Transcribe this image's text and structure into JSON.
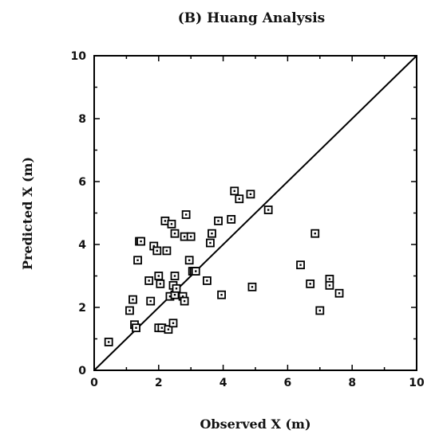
{
  "chart_data": {
    "type": "scatter",
    "title": "(B) Huang Analysis",
    "xlabel": "Observed X (m)",
    "ylabel": "Predicted X (m)",
    "xlim": [
      0,
      10
    ],
    "ylim": [
      0,
      10
    ],
    "xticks": [
      0,
      2,
      4,
      6,
      8,
      10
    ],
    "yticks": [
      0,
      2,
      4,
      6,
      8,
      10
    ],
    "xtick_labels": [
      "0",
      "2",
      "4",
      "6",
      "8",
      "10"
    ],
    "ytick_labels": [
      "0",
      "2",
      "4",
      "6",
      "8",
      "10"
    ],
    "reference_line": {
      "x": [
        0,
        10
      ],
      "y": [
        0,
        10
      ]
    },
    "grid": false,
    "marker": "open-square",
    "series": [
      {
        "x": [
          0.45,
          1.1,
          1.2,
          1.25,
          1.3,
          1.35,
          1.4,
          1.45,
          1.7,
          1.75,
          1.85,
          1.95,
          2.0,
          2.0,
          2.05,
          2.1,
          2.2,
          2.25,
          2.3,
          2.35,
          2.4,
          2.45,
          2.45,
          2.5,
          2.5,
          2.5,
          2.55,
          2.75,
          2.8,
          2.8,
          2.85,
          2.95,
          3.0,
          3.05,
          3.1,
          3.15,
          3.5,
          3.6,
          3.65,
          3.85,
          3.95,
          4.25,
          4.35,
          4.5,
          4.85,
          4.9,
          5.4,
          6.4,
          6.7,
          6.85,
          7.0,
          7.3,
          7.3,
          7.6
        ],
        "y": [
          0.9,
          1.9,
          2.25,
          1.45,
          1.35,
          3.5,
          4.1,
          4.1,
          2.85,
          2.2,
          3.95,
          3.8,
          3.0,
          1.35,
          2.75,
          1.35,
          4.75,
          3.8,
          1.3,
          2.35,
          4.65,
          2.7,
          1.5,
          3.0,
          2.4,
          4.35,
          2.6,
          2.35,
          2.2,
          4.25,
          4.95,
          3.5,
          4.25,
          3.15,
          3.15,
          3.15,
          2.85,
          4.05,
          4.35,
          4.75,
          2.4,
          4.8,
          5.7,
          5.45,
          5.6,
          2.65,
          5.1,
          3.35,
          2.75,
          4.35,
          1.9,
          2.9,
          2.7,
          2.45
        ]
      }
    ]
  }
}
